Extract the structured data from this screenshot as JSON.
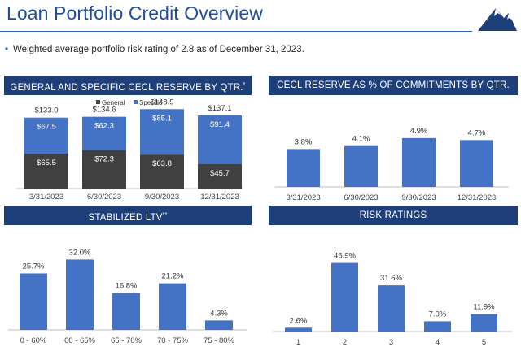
{
  "header": {
    "title": "Loan Portfolio Credit Overview",
    "logo_icon": "mountain-logo-icon",
    "bullet_icon": "bullet-dot-icon",
    "bullet_text": "Weighted average portfolio risk rating of 2.8 as of December 31, 2023."
  },
  "colors": {
    "header_bg": "#1f3f7a",
    "accent": "#2f5fb0",
    "bar_blue": "#4472c4",
    "bar_dark": "#404040"
  },
  "panels": {
    "cecl": {
      "title": "GENERAL AND SPECIFIC CECL RESERVE BY QTR.",
      "mark": "*"
    },
    "cecl_pct": {
      "title": "CECL RESERVE AS % OF COMMITMENTS BY QTR."
    },
    "ltv": {
      "title": "STABILIZED LTV",
      "mark": "**"
    },
    "risk": {
      "title": "RISK RATINGS"
    }
  },
  "chart_data": [
    {
      "id": "cecl",
      "type": "bar",
      "stacked": true,
      "title": "GENERAL AND SPECIFIC CECL RESERVE BY QTR.*",
      "categories": [
        "3/31/2023",
        "6/30/2023",
        "9/30/2023",
        "12/31/2023"
      ],
      "series": [
        {
          "name": "General",
          "color": "#404040",
          "values": [
            65.5,
            72.3,
            63.8,
            45.7
          ],
          "labels": [
            "$65.5",
            "$72.3",
            "$63.8",
            "$45.7"
          ]
        },
        {
          "name": "Specific",
          "color": "#4472c4",
          "values": [
            67.5,
            62.3,
            85.1,
            91.4
          ],
          "labels": [
            "$67.5",
            "$62.3",
            "$85.1",
            "$91.4"
          ]
        }
      ],
      "totals": [
        133.0,
        134.6,
        148.9,
        137.1
      ],
      "total_labels": [
        "$133.0",
        "$134.6",
        "$148.9",
        "$137.1"
      ],
      "legend_position": "top-center",
      "grid": false,
      "ylim": [
        0,
        160
      ]
    },
    {
      "id": "cecl_pct",
      "type": "bar",
      "title": "CECL RESERVE AS % OF COMMITMENTS BY QTR.",
      "categories": [
        "3/31/2023",
        "6/30/2023",
        "9/30/2023",
        "12/31/2023"
      ],
      "values": [
        3.8,
        4.1,
        4.9,
        4.7
      ],
      "labels": [
        "3.8%",
        "4.1%",
        "4.9%",
        "4.7%"
      ],
      "grid": false,
      "ylim": [
        0,
        7.5
      ]
    },
    {
      "id": "ltv",
      "type": "bar",
      "title": "STABILIZED LTV**",
      "categories": [
        "0 - 60%",
        "60 - 65%",
        "65 - 70%",
        "70 - 75%",
        "75 - 80%"
      ],
      "values": [
        25.7,
        32.0,
        16.8,
        21.2,
        4.3
      ],
      "labels": [
        "25.7%",
        "32.0%",
        "16.8%",
        "21.2%",
        "4.3%"
      ],
      "grid": false,
      "ylim": [
        0,
        34
      ]
    },
    {
      "id": "risk",
      "type": "bar",
      "title": "RISK RATINGS",
      "categories": [
        "1",
        "2",
        "3",
        "4",
        "5"
      ],
      "values": [
        2.6,
        46.9,
        31.6,
        7.0,
        11.9
      ],
      "labels": [
        "2.6%",
        "46.9%",
        "31.6%",
        "7.0%",
        "11.9%"
      ],
      "grid": false,
      "ylim": [
        0,
        50
      ]
    }
  ]
}
